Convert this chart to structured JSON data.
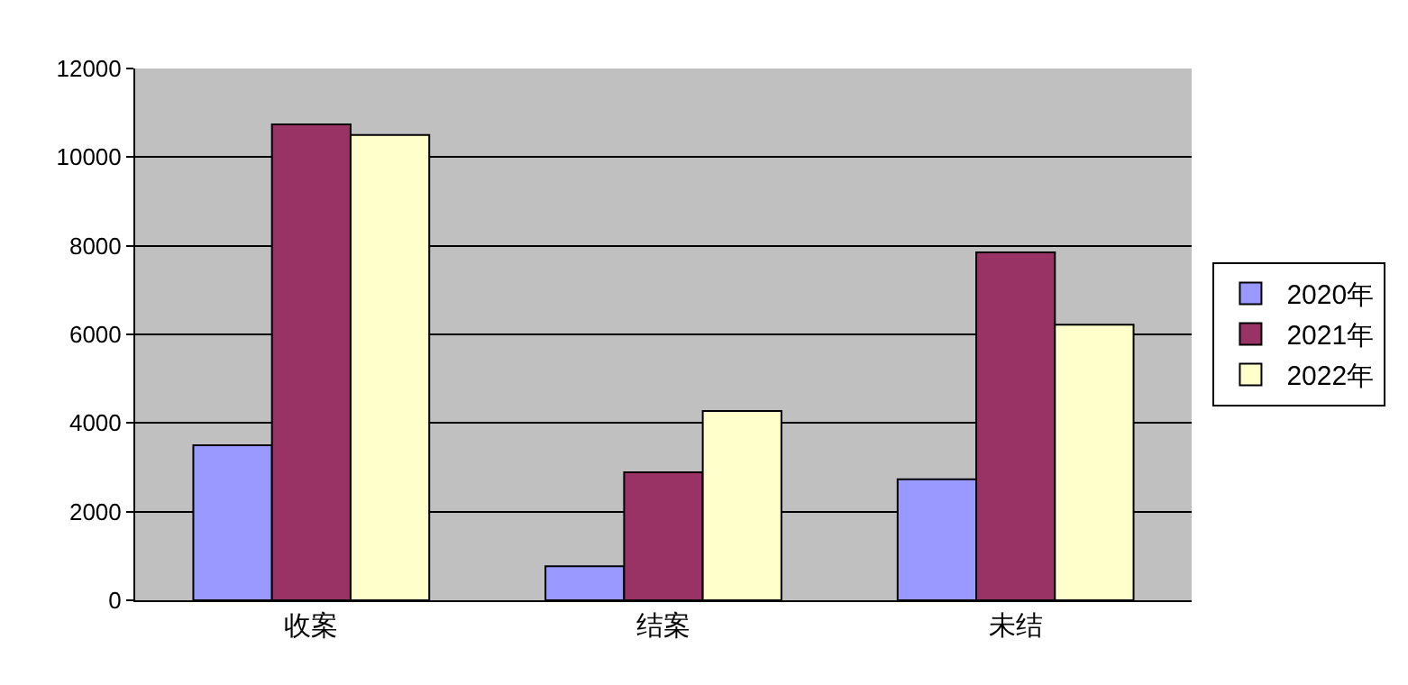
{
  "chart_data": {
    "type": "bar",
    "categories": [
      "收案",
      "结案",
      "未结"
    ],
    "series": [
      {
        "name": "2020年",
        "color": "#9999ff",
        "values": [
          3500,
          770,
          2730
        ]
      },
      {
        "name": "2021年",
        "color": "#993366",
        "values": [
          10740,
          2890,
          7850
        ]
      },
      {
        "name": "2022年",
        "color": "#ffffcc",
        "values": [
          10500,
          4270,
          6220
        ]
      }
    ],
    "ylim": [
      0,
      12000
    ],
    "yticks": [
      0,
      2000,
      4000,
      6000,
      8000,
      10000,
      12000
    ],
    "grid": "y",
    "legend": "right"
  }
}
